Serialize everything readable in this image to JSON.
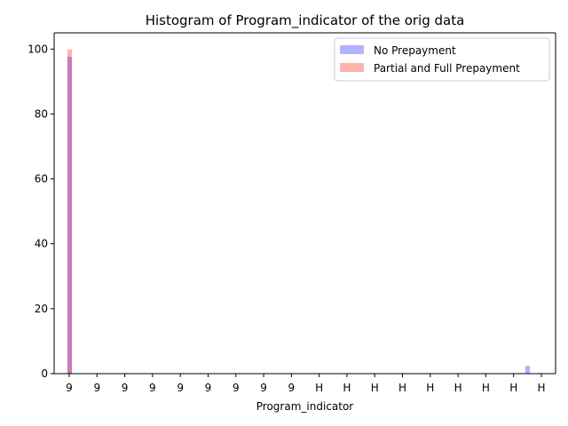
{
  "chart_data": {
    "type": "bar",
    "title": "Histogram of Program_indicator of the orig data",
    "xlabel": "Program_indicator",
    "ylabel": "",
    "ylim": [
      0,
      105
    ],
    "yticks": [
      0,
      20,
      40,
      60,
      80,
      100
    ],
    "x_tick_labels": [
      "9",
      "9",
      "9",
      "9",
      "9",
      "9",
      "9",
      "9",
      "9",
      "H",
      "H",
      "H",
      "H",
      "H",
      "H",
      "H",
      "H",
      "H"
    ],
    "categories": [
      "9",
      "H"
    ],
    "series": [
      {
        "name": "No Prepayment",
        "color": "#0000ff",
        "alpha": 0.3,
        "values": [
          97.6,
          2.4
        ]
      },
      {
        "name": "Partial and Full Prepayment",
        "color": "#ff0000",
        "alpha": 0.3,
        "values": [
          99.9,
          0.1
        ]
      }
    ],
    "legend_position": "top-right",
    "grid": false
  }
}
